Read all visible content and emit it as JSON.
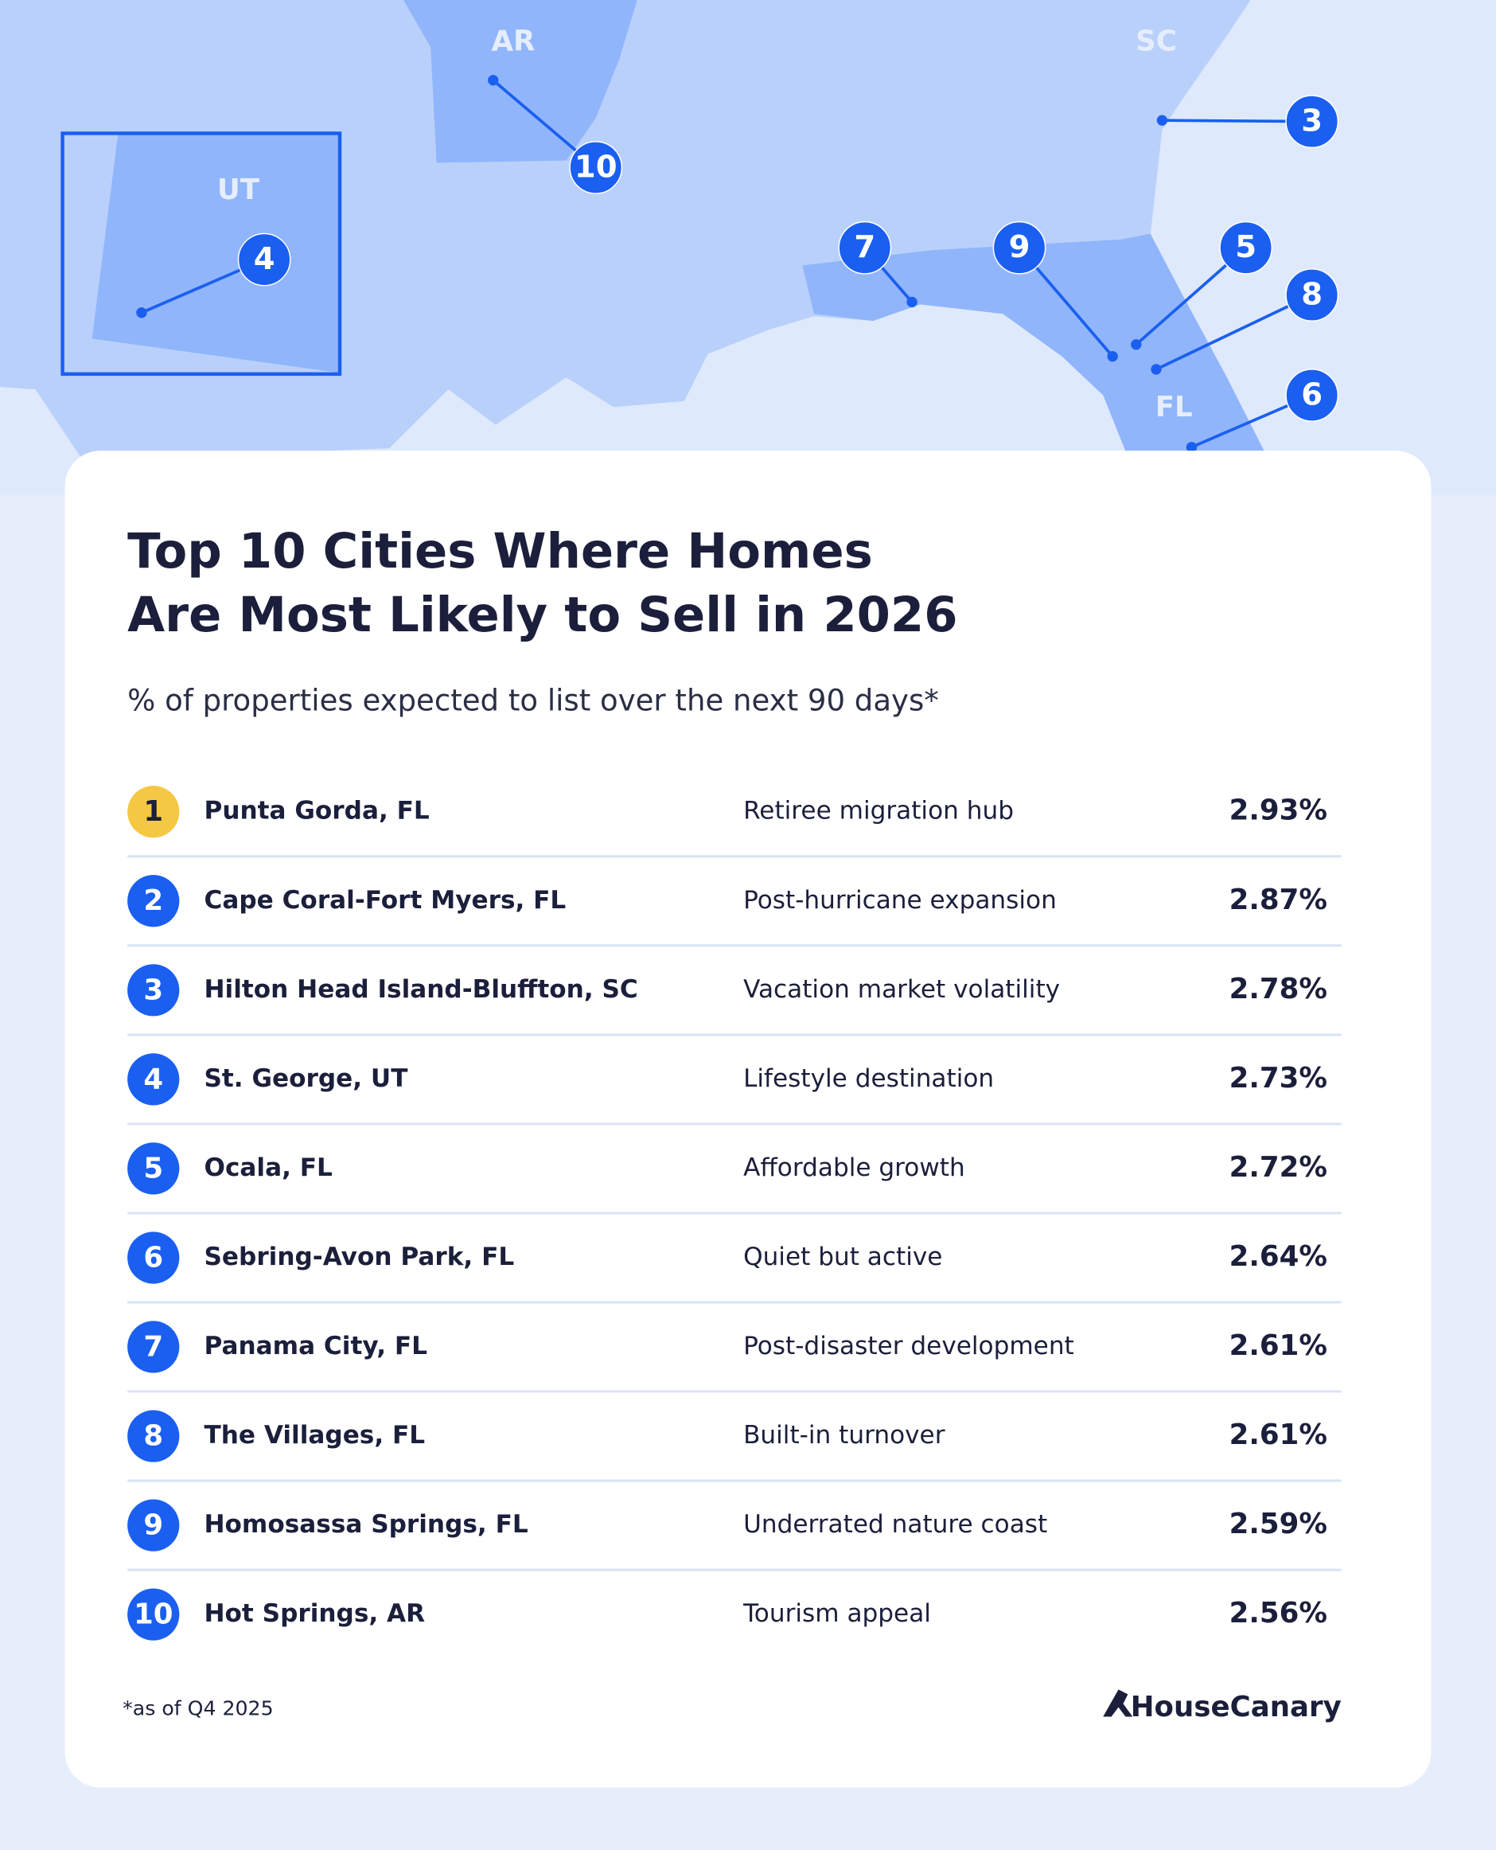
{
  "map": {
    "state_labels": [
      "AR",
      "SC",
      "UT",
      "FL"
    ]
  },
  "header": {
    "title_lines": [
      "Top 10 Cities Where Homes",
      "Are Most Likely to Sell in 2026"
    ],
    "subtitle": "% of properties expected to list over the next 90 days*"
  },
  "table": {
    "rows": [
      [
        "1",
        "Punta Gorda, FL",
        "Retiree migration hub",
        "2.93%"
      ],
      [
        "2",
        "Cape Coral-Fort Myers, FL",
        "Post-hurricane expansion",
        "2.87%"
      ],
      [
        "3",
        "Hilton Head Island-Bluffton, SC",
        "Vacation market volatility",
        "2.78%"
      ],
      [
        "4",
        "St. George, UT",
        "Lifestyle destination",
        "2.73%"
      ],
      [
        "5",
        "Ocala, FL",
        "Affordable growth",
        "2.72%"
      ],
      [
        "6",
        "Sebring-Avon Park, FL",
        "Quiet but active",
        "2.64%"
      ],
      [
        "7",
        "Panama City, FL",
        "Post-disaster development",
        "2.61%"
      ],
      [
        "8",
        "The Villages, FL",
        "Built-in turnover",
        "2.61%"
      ],
      [
        "9",
        "Homosassa Springs, FL",
        "Underrated nature coast",
        "2.59%"
      ],
      [
        "10",
        "Hot Springs, AR",
        "Tourism appeal",
        "2.56%"
      ]
    ]
  },
  "footer": {
    "note": "*as of Q4 2025",
    "brand": "HouseCanary"
  }
}
